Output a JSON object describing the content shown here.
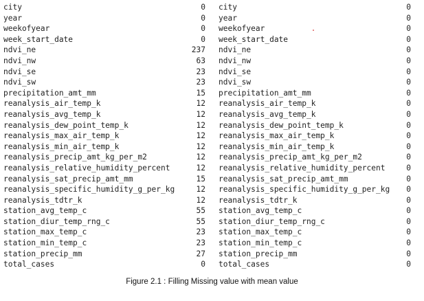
{
  "left_table": [
    {
      "name": "city",
      "value": "0"
    },
    {
      "name": "year",
      "value": "0"
    },
    {
      "name": "weekofyear",
      "value": "0"
    },
    {
      "name": "week_start_date",
      "value": "0"
    },
    {
      "name": "ndvi_ne",
      "value": "237"
    },
    {
      "name": "ndvi_nw",
      "value": "63"
    },
    {
      "name": "ndvi_se",
      "value": "23"
    },
    {
      "name": "ndvi_sw",
      "value": "23"
    },
    {
      "name": "precipitation_amt_mm",
      "value": "15"
    },
    {
      "name": "reanalysis_air_temp_k",
      "value": "12"
    },
    {
      "name": "reanalysis_avg_temp_k",
      "value": "12"
    },
    {
      "name": "reanalysis_dew_point_temp_k",
      "value": "12"
    },
    {
      "name": "reanalysis_max_air_temp_k",
      "value": "12"
    },
    {
      "name": "reanalysis_min_air_temp_k",
      "value": "12"
    },
    {
      "name": "reanalysis_precip_amt_kg_per_m2",
      "value": "12"
    },
    {
      "name": "reanalysis_relative_humidity_percent",
      "value": "12"
    },
    {
      "name": "reanalysis_sat_precip_amt_mm",
      "value": "15"
    },
    {
      "name": "reanalysis_specific_humidity_g_per_kg",
      "value": "12"
    },
    {
      "name": "reanalysis_tdtr_k",
      "value": "12"
    },
    {
      "name": "station_avg_temp_c",
      "value": "55"
    },
    {
      "name": "station_diur_temp_rng_c",
      "value": "55"
    },
    {
      "name": "station_max_temp_c",
      "value": "23"
    },
    {
      "name": "station_min_temp_c",
      "value": "23"
    },
    {
      "name": "station_precip_mm",
      "value": "27"
    },
    {
      "name": "total_cases",
      "value": "0"
    }
  ],
  "right_table": [
    {
      "name": "city",
      "value": "0"
    },
    {
      "name": "year",
      "value": "0"
    },
    {
      "name": "weekofyear",
      "value": "0"
    },
    {
      "name": "week_start_date",
      "value": "0"
    },
    {
      "name": "ndvi_ne",
      "value": "0"
    },
    {
      "name": "ndvi_nw",
      "value": "0"
    },
    {
      "name": "ndvi_se",
      "value": "0"
    },
    {
      "name": "ndvi_sw",
      "value": "0"
    },
    {
      "name": "precipitation_amt_mm",
      "value": "0"
    },
    {
      "name": "reanalysis_air_temp_k",
      "value": "0"
    },
    {
      "name": "reanalysis_avg_temp_k",
      "value": "0"
    },
    {
      "name": "reanalysis_dew_point_temp_k",
      "value": "0"
    },
    {
      "name": "reanalysis_max_air_temp_k",
      "value": "0"
    },
    {
      "name": "reanalysis_min_air_temp_k",
      "value": "0"
    },
    {
      "name": "reanalysis_precip_amt_kg_per_m2",
      "value": "0"
    },
    {
      "name": "reanalysis_relative_humidity_percent",
      "value": "0"
    },
    {
      "name": "reanalysis_sat_precip_amt_mm",
      "value": "0"
    },
    {
      "name": "reanalysis_specific_humidity_g_per_kg",
      "value": "0"
    },
    {
      "name": "reanalysis_tdtr_k",
      "value": "0"
    },
    {
      "name": "station_avg_temp_c",
      "value": "0"
    },
    {
      "name": "station_diur_temp_rng_c",
      "value": "0"
    },
    {
      "name": "station_max_temp_c",
      "value": "0"
    },
    {
      "name": "station_min_temp_c",
      "value": "0"
    },
    {
      "name": "station_precip_mm",
      "value": "0"
    },
    {
      "name": "total_cases",
      "value": "0"
    }
  ],
  "caption": {
    "label": "Figure 2.1",
    "separator": " : ",
    "text": "Filling Missing value with mean value"
  }
}
